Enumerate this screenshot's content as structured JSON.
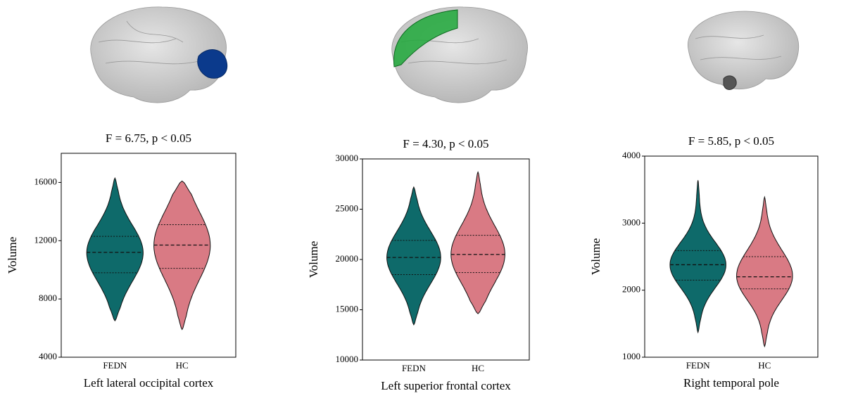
{
  "chart_data": [
    {
      "type": "violin",
      "title": "F = 6.75, p < 0.05",
      "xlabel": "Left lateral occipital cortex",
      "ylabel": "Volume",
      "categories": [
        "FEDN",
        "HC"
      ],
      "ylim": [
        4000,
        18000
      ],
      "yticks": [
        4000,
        8000,
        12000,
        16000
      ],
      "violins": [
        {
          "color": "#0e6a6a",
          "min": 6500,
          "q1": 9800,
          "median": 11200,
          "q3": 12300,
          "max": 16300
        },
        {
          "color": "#d97a84",
          "min": 5900,
          "q1": 10100,
          "median": 11700,
          "q3": 13100,
          "max": 16100
        }
      ]
    },
    {
      "type": "violin",
      "title": "F = 4.30, p < 0.05",
      "xlabel": "Left superior frontal cortex",
      "ylabel": "Volume",
      "categories": [
        "FEDN",
        "HC"
      ],
      "ylim": [
        10000,
        30000
      ],
      "yticks": [
        10000,
        15000,
        20000,
        25000,
        30000
      ],
      "violins": [
        {
          "color": "#0e6a6a",
          "min": 13500,
          "q1": 18500,
          "median": 20200,
          "q3": 21900,
          "max": 27200
        },
        {
          "color": "#d97a84",
          "min": 14600,
          "q1": 18700,
          "median": 20500,
          "q3": 22400,
          "max": 28700
        }
      ]
    },
    {
      "type": "violin",
      "title": "F = 5.85, p < 0.05",
      "xlabel": "Right temporal pole",
      "ylabel": "Volume",
      "categories": [
        "FEDN",
        "HC"
      ],
      "ylim": [
        1000,
        4000
      ],
      "yticks": [
        1000,
        2000,
        3000,
        4000
      ],
      "violins": [
        {
          "color": "#0e6a6a",
          "min": 1370,
          "q1": 2150,
          "median": 2380,
          "q3": 2590,
          "max": 3640
        },
        {
          "color": "#d97a84",
          "min": 1160,
          "q1": 2020,
          "median": 2200,
          "q3": 2500,
          "max": 3390
        }
      ]
    }
  ]
}
